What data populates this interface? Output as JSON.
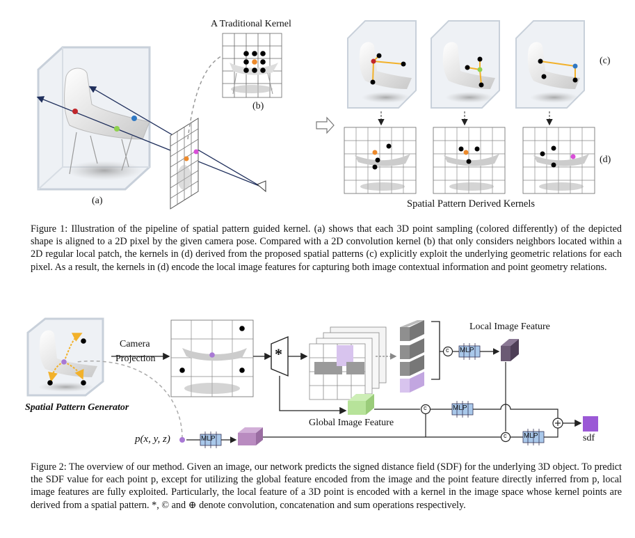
{
  "figure1": {
    "title_b": "A Traditional Kernel",
    "label_a": "(a)",
    "label_b": "(b)",
    "label_c": "(c)",
    "label_d": "(d)",
    "derived_title": "Spatial Pattern Derived Kernels",
    "caption": "Figure 1: Illustration of the pipeline of spatial pattern guided kernel. (a) shows that each 3D point sampling (colored differently) of the depicted shape is aligned to a 2D pixel by the given camera pose. Compared with a 2D convolution kernel (b) that only considers neighbors located within a 2D regular local patch, the kernels in (d) derived from the proposed spatial patterns (c) explicitly exploit the underlying geometric relations for each pixel. As a result, the kernels in (d) encode the local image features for capturing both image contextual information and point geometry relations."
  },
  "figure2": {
    "camera_projection": [
      "Camera",
      "Projection"
    ],
    "conv_symbol": "*",
    "local_feature": "Local Image Feature",
    "global_feature": "Global Image Feature",
    "generator": "Spatial Pattern Generator",
    "point": "p(x, y, z)",
    "mlp": "MLP",
    "concat": "c",
    "sum": "+",
    "output": "sdf",
    "caption": "Figure 2: The overview of our method. Given an image, our network predicts the signed distance field (SDF) for the underlying 3D object. To predict the SDF value for each point p, except for utilizing the global feature encoded from the image and the point feature directly inferred from p, local image features are fully exploited. Particularly, the local feature of a 3D point is encoded with a kernel in the image space whose kernel points are derived from a spatial pattern. *, © and ⊕ denote convolution, concatenation and sum operations respectively."
  },
  "colors": {
    "red": "#c0262b",
    "blue": "#2f78c4",
    "green": "#8fd14f",
    "orange": "#ec8a2c",
    "magenta": "#d94fd8",
    "purple": "#a878d4",
    "dark_purple": "#6b5a74",
    "light_green": "#b7e39a",
    "mlp_blue": "#a9c8ea",
    "navy": "#1f2f5c",
    "yellow": "#f2b12a"
  }
}
